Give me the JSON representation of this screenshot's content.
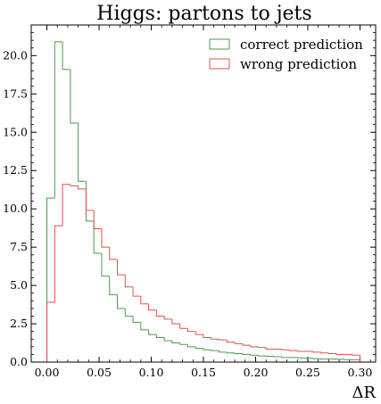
{
  "chart_data": {
    "type": "step-histogram",
    "title": "Higgs: partons to jets",
    "xlabel": "ΔR",
    "ylabel": "",
    "xlim": [
      -0.015,
      0.315
    ],
    "ylim": [
      0,
      22
    ],
    "xticks": [
      0.0,
      0.05,
      0.1,
      0.15,
      0.2,
      0.25,
      0.3
    ],
    "xtick_labels": [
      "0.00",
      "0.05",
      "0.10",
      "0.15",
      "0.20",
      "0.25",
      "0.30"
    ],
    "yticks": [
      0.0,
      2.5,
      5.0,
      7.5,
      10.0,
      12.5,
      15.0,
      17.5,
      20.0
    ],
    "ytick_labels": [
      "0.0",
      "2.5",
      "5.0",
      "7.5",
      "10.0",
      "12.5",
      "15.0",
      "17.5",
      "20.0"
    ],
    "legend_position": "top-right",
    "bin_edges": [
      0.0,
      0.0075,
      0.015,
      0.0225,
      0.03,
      0.0375,
      0.045,
      0.0525,
      0.06,
      0.0675,
      0.075,
      0.0825,
      0.09,
      0.0975,
      0.105,
      0.1125,
      0.12,
      0.1275,
      0.135,
      0.1425,
      0.15,
      0.1575,
      0.165,
      0.1725,
      0.18,
      0.1875,
      0.195,
      0.2025,
      0.21,
      0.2175,
      0.225,
      0.2325,
      0.24,
      0.2475,
      0.255,
      0.2625,
      0.27,
      0.2775,
      0.285,
      0.2925,
      0.3
    ],
    "series": [
      {
        "name": "correct prediction",
        "color": "#4a9a4a",
        "values": [
          10.7,
          20.9,
          19.1,
          15.6,
          11.8,
          9.2,
          7.1,
          5.6,
          4.4,
          3.5,
          3.0,
          2.6,
          2.1,
          1.8,
          1.6,
          1.4,
          1.25,
          1.15,
          1.0,
          0.9,
          0.8,
          0.75,
          0.65,
          0.6,
          0.55,
          0.5,
          0.45,
          0.4,
          0.38,
          0.35,
          0.3,
          0.3,
          0.27,
          0.25,
          0.22,
          0.2,
          0.2,
          0.18,
          0.16,
          0.15
        ]
      },
      {
        "name": "wrong prediction",
        "color": "#d9534f",
        "values": [
          3.9,
          8.9,
          11.6,
          11.5,
          11.3,
          9.9,
          8.7,
          7.5,
          6.7,
          5.7,
          4.9,
          4.3,
          3.8,
          3.4,
          3.0,
          2.8,
          2.5,
          2.2,
          2.0,
          1.8,
          1.6,
          1.5,
          1.45,
          1.3,
          1.2,
          1.1,
          1.0,
          0.95,
          0.85,
          0.85,
          0.8,
          0.75,
          0.7,
          0.7,
          0.65,
          0.6,
          0.55,
          0.5,
          0.5,
          0.45
        ]
      }
    ]
  }
}
